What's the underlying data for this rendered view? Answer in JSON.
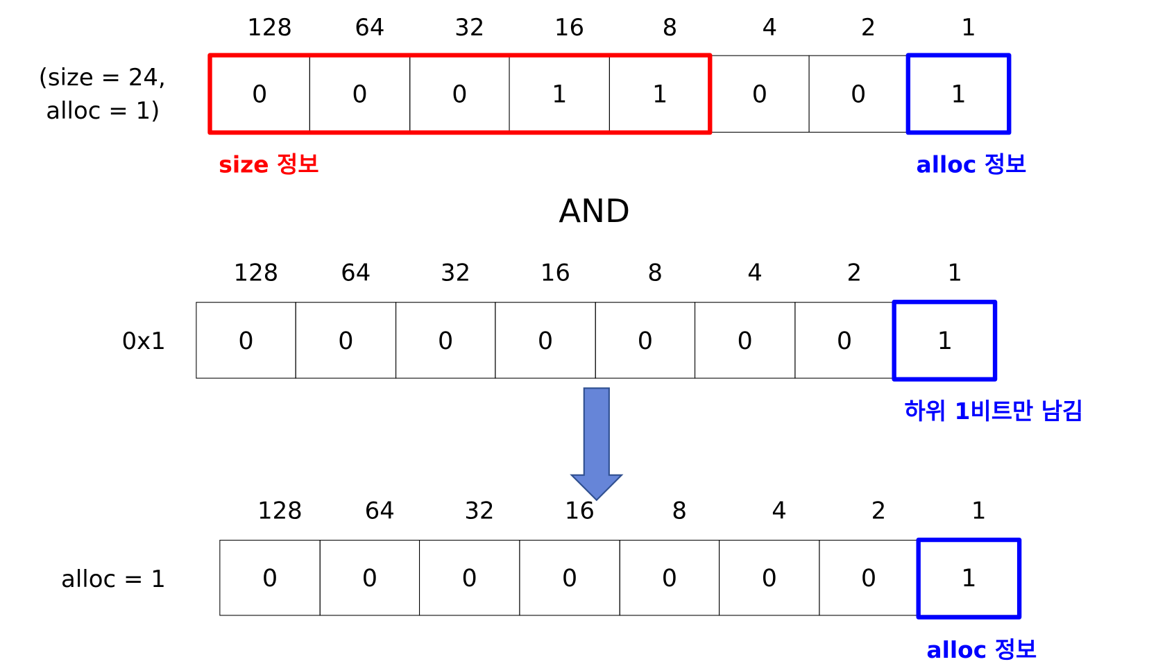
{
  "rows": [
    {
      "left_label_lines": [
        "(size = 24,",
        "alloc = 1)"
      ],
      "weights": [
        "128",
        "64",
        "32",
        "16",
        "8",
        "4",
        "2",
        "1"
      ],
      "bits": [
        "0",
        "0",
        "0",
        "1",
        "1",
        "0",
        "0",
        "1"
      ]
    },
    {
      "left_label_lines": [
        "0x1"
      ],
      "weights": [
        "128",
        "64",
        "32",
        "16",
        "8",
        "4",
        "2",
        "1"
      ],
      "bits": [
        "0",
        "0",
        "0",
        "0",
        "0",
        "0",
        "0",
        "1"
      ]
    },
    {
      "left_label_lines": [
        "alloc = 1"
      ],
      "weights": [
        "128",
        "64",
        "32",
        "16",
        "8",
        "4",
        "2",
        "1"
      ],
      "bits": [
        "0",
        "0",
        "0",
        "0",
        "0",
        "0",
        "0",
        "1"
      ]
    }
  ],
  "annotations": {
    "size_info": "size 정보",
    "alloc_info_top": "alloc 정보",
    "operator": "AND",
    "keep_low_bit": "하위 1비트만 남김",
    "alloc_info_bottom": "alloc 정보"
  },
  "colors": {
    "size_highlight": "#ff0000",
    "alloc_highlight": "#0000ff",
    "arrow_fill": "#6685d8",
    "arrow_stroke": "#2f4f8f"
  }
}
